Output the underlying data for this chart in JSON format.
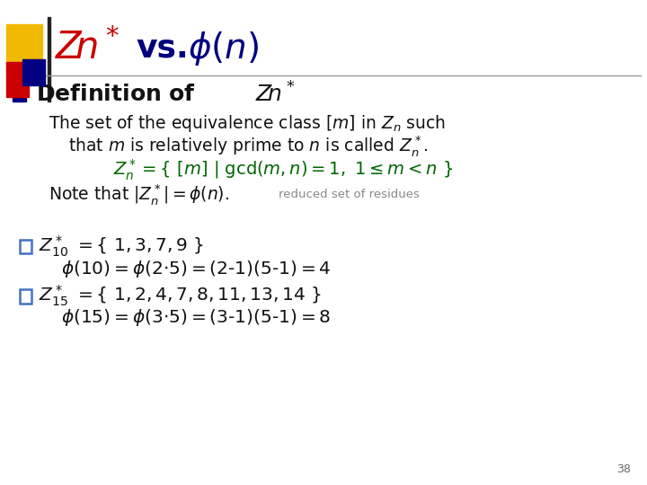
{
  "bg_color": "#ffffff",
  "red_color": "#cc0000",
  "navy_color": "#000080",
  "black_color": "#111111",
  "green_color": "#006600",
  "gray_color": "#888888",
  "blue_bullet_color": "#4472c4",
  "slide_number": "38"
}
